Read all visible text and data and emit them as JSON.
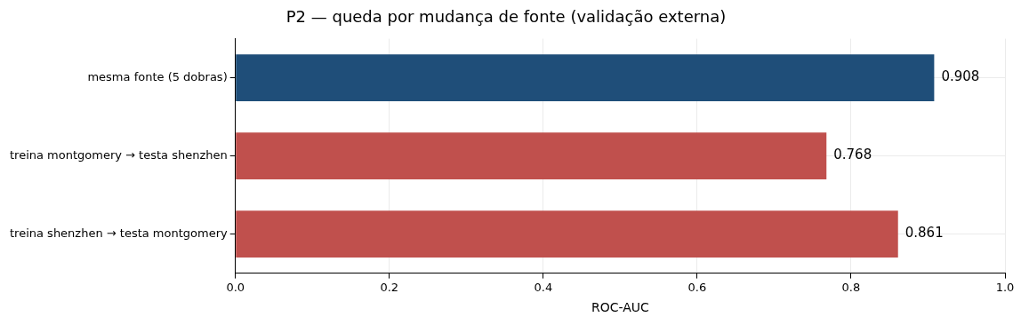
{
  "chart_data": {
    "type": "bar",
    "orientation": "horizontal",
    "title": "P2 — queda por mudança de fonte (validação externa)",
    "xlabel": "ROC-AUC",
    "categories": [
      "mesma fonte (5 dobras)",
      "treina montgomery → testa shenzhen",
      "treina shenzhen → testa montgomery"
    ],
    "values": [
      0.908,
      0.768,
      0.861
    ],
    "colors": [
      "#1f4e79",
      "#c0504d",
      "#c0504d"
    ],
    "xlim": [
      0,
      1
    ],
    "xticks": [
      {
        "value": 0,
        "label": "0.0"
      },
      0.2,
      0.4,
      0.6,
      0.8,
      {
        "value": 1,
        "label": "1.0"
      }
    ],
    "grid": true,
    "data_labels": true
  }
}
